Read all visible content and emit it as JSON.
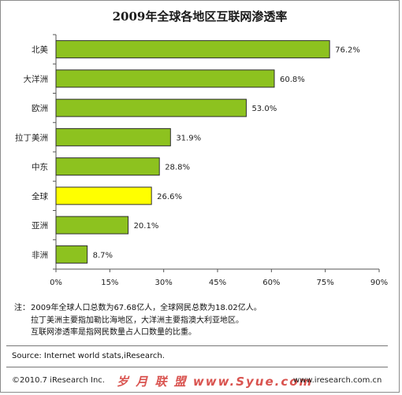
{
  "chart_data": {
    "type": "bar",
    "orientation": "horizontal",
    "title": "2009年全球各地区互联网渗透率",
    "categories": [
      "北美",
      "大洋洲",
      "欧洲",
      "拉丁美洲",
      "中东",
      "全球",
      "亚洲",
      "非洲"
    ],
    "values": [
      76.2,
      60.8,
      53.0,
      31.9,
      28.8,
      26.6,
      20.1,
      8.7
    ],
    "value_labels": [
      "76.2%",
      "60.8%",
      "53.0%",
      "31.9%",
      "28.8%",
      "26.6%",
      "20.1%",
      "8.7%"
    ],
    "xlim": [
      0,
      90
    ],
    "ticks": [
      0,
      15,
      30,
      45,
      60,
      75,
      90
    ],
    "tick_labels": [
      "0%",
      "15%",
      "30%",
      "45%",
      "60%",
      "75%",
      "90%"
    ],
    "colors": {
      "default": "#8dc21f",
      "highlight": "#ffff00",
      "highlight_category": "全球",
      "border": "#2f2f2f"
    },
    "grid": false
  },
  "notes": {
    "prefix": "注：",
    "lines": [
      "2009年全球人口总数为67.68亿人，全球网民总数为18.02亿人。",
      "拉丁美洲主要指加勒比海地区，大洋洲主要指澳大利亚地区。",
      "互联网渗透率是指网民数量占人口数量的比重。"
    ]
  },
  "source": "Source: Internet world stats,iResearch.",
  "footer": {
    "copyright": "©2010.7 iResearch Inc.",
    "watermark": "岁 月 联 盟  www.Syue.com",
    "website": "www.iresearch.com.cn"
  }
}
